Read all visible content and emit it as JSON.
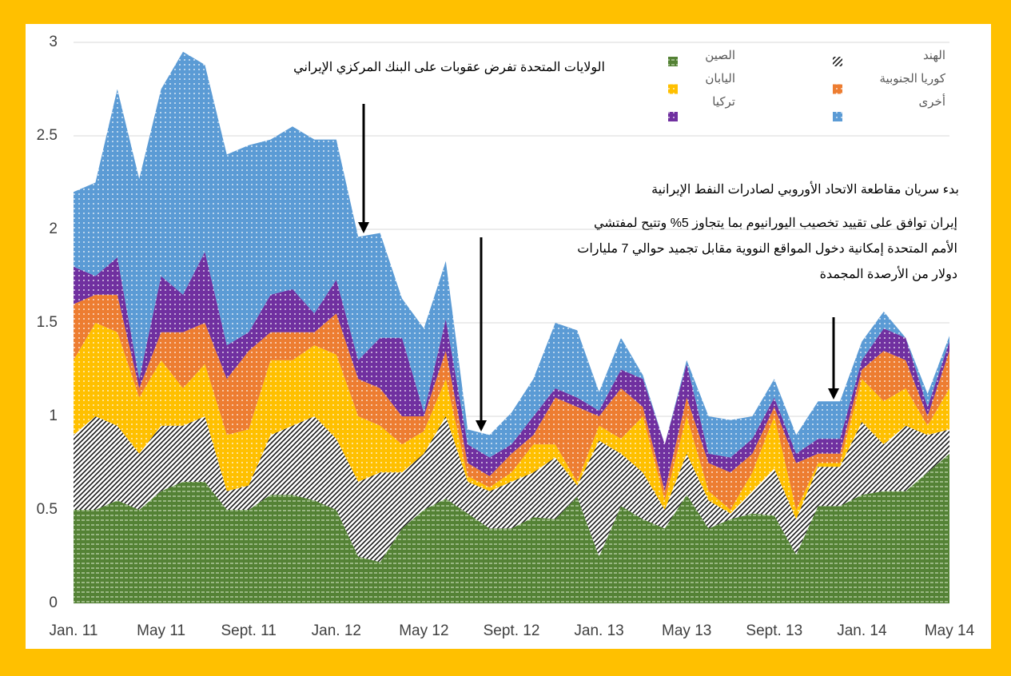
{
  "chart_data": {
    "type": "stacked-area",
    "categories": [
      "Jan. 11",
      null,
      null,
      null,
      "May 11",
      null,
      null,
      null,
      "Sept. 11",
      null,
      null,
      null,
      "Jan. 12",
      null,
      null,
      null,
      "May 12",
      null,
      null,
      null,
      "Sept. 12",
      null,
      null,
      null,
      "Jan. 13",
      null,
      null,
      null,
      "May 13",
      null,
      null,
      null,
      "Sept. 13",
      null,
      null,
      null,
      "Jan. 14",
      null,
      null,
      null,
      "May 14"
    ],
    "series": [
      {
        "name": "الصين",
        "color": "#548235",
        "values": [
          0.5,
          0.5,
          0.55,
          0.5,
          0.6,
          0.65,
          0.65,
          0.5,
          0.5,
          0.58,
          0.58,
          0.55,
          0.5,
          0.25,
          0.22,
          0.4,
          0.5,
          0.56,
          0.48,
          0.4,
          0.4,
          0.46,
          0.45,
          0.57,
          0.25,
          0.52,
          0.45,
          0.4,
          0.58,
          0.4,
          0.45,
          0.48,
          0.47,
          0.26,
          0.52,
          0.52,
          0.58,
          0.6,
          0.6,
          0.7,
          0.8
        ]
      },
      {
        "name": "الهند",
        "color": "#1a1a1a",
        "values": [
          0.4,
          0.5,
          0.4,
          0.3,
          0.35,
          0.3,
          0.35,
          0.1,
          0.13,
          0.32,
          0.37,
          0.45,
          0.38,
          0.4,
          0.48,
          0.3,
          0.3,
          0.44,
          0.17,
          0.2,
          0.25,
          0.24,
          0.33,
          0.06,
          0.62,
          0.28,
          0.25,
          0.1,
          0.22,
          0.15,
          0.03,
          0.12,
          0.25,
          0.19,
          0.21,
          0.21,
          0.39,
          0.25,
          0.35,
          0.2,
          0.13
        ]
      },
      {
        "name": "اليابان",
        "color": "#FFC000",
        "values": [
          0.4,
          0.5,
          0.5,
          0.3,
          0.35,
          0.2,
          0.28,
          0.3,
          0.3,
          0.4,
          0.35,
          0.38,
          0.45,
          0.35,
          0.25,
          0.15,
          0.12,
          0.2,
          0.03,
          0.02,
          0.05,
          0.15,
          0.07,
          0.02,
          0.08,
          0.08,
          0.3,
          0.05,
          0.2,
          0.05,
          0.02,
          0.1,
          0.28,
          0.05,
          0.02,
          0.02,
          0.23,
          0.23,
          0.2,
          0.05,
          0.22
        ]
      },
      {
        "name": "كوريا الجنوبية",
        "color": "#ED7D31",
        "values": [
          0.3,
          0.15,
          0.2,
          0.05,
          0.15,
          0.3,
          0.22,
          0.3,
          0.42,
          0.15,
          0.15,
          0.07,
          0.22,
          0.2,
          0.2,
          0.15,
          0.08,
          0.15,
          0.07,
          0.06,
          0.1,
          0.05,
          0.25,
          0.4,
          0.05,
          0.27,
          0.05,
          0.05,
          0.1,
          0.15,
          0.2,
          0.1,
          0.05,
          0.25,
          0.05,
          0.05,
          0.05,
          0.27,
          0.15,
          0.05,
          0.2
        ]
      },
      {
        "name": "تركيا",
        "color": "#7030A0",
        "values": [
          0.2,
          0.1,
          0.2,
          0.05,
          0.3,
          0.2,
          0.38,
          0.18,
          0.1,
          0.2,
          0.23,
          0.1,
          0.18,
          0.1,
          0.27,
          0.42,
          0.02,
          0.17,
          0.1,
          0.1,
          0.05,
          0.1,
          0.05,
          0.05,
          0.03,
          0.1,
          0.15,
          0.25,
          0.18,
          0.05,
          0.08,
          0.08,
          0.05,
          0.05,
          0.08,
          0.08,
          0.05,
          0.12,
          0.12,
          0.05,
          0.05
        ]
      },
      {
        "name": "أخرى",
        "color": "#5B9BD5",
        "values": [
          0.4,
          0.5,
          0.9,
          1.07,
          1.0,
          1.3,
          1.0,
          1.02,
          1.0,
          0.83,
          0.87,
          0.93,
          0.75,
          0.66,
          0.56,
          0.21,
          0.45,
          0.31,
          0.08,
          0.12,
          0.17,
          0.2,
          0.35,
          0.36,
          0.1,
          0.17,
          0.02,
          0,
          0.02,
          0.2,
          0.2,
          0.12,
          0.1,
          0.1,
          0.2,
          0.2,
          0.1,
          0.09,
          0,
          0.07,
          0.03
        ]
      }
    ],
    "ylim": [
      0,
      3
    ],
    "yticks": [
      0,
      0.5,
      1,
      1.5,
      2,
      2.5,
      3
    ],
    "grid": true,
    "annotations": [
      {
        "lines": [
          "الولايات المتحدة تفرض عقوبات على البنك المركزي الإيراني"
        ]
      },
      {
        "lines": [
          "بدء سريان مقاطعة الاتحاد الأوروبي لصادرات النفط الإيرانية"
        ]
      },
      {
        "lines": [
          "إيران توافق على تقييد تخصيب اليورانيوم بما يتجاوز 5% وتتيح لمفتشي",
          "الأمم المتحدة إمكانية دخول المواقع النووية مقابل تجميد حوالي 7 مليارات",
          "دولار من الأرصدة المجمدة"
        ]
      }
    ]
  }
}
